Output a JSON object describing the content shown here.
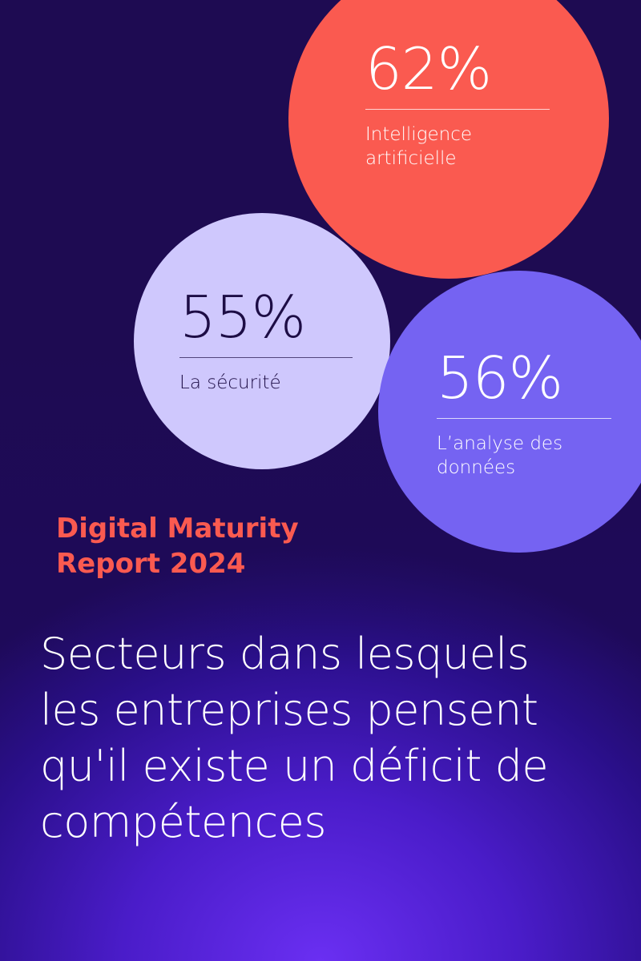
{
  "colors": {
    "background_top": "#1e0b52",
    "background_glow": "#6a2ff2",
    "coral": "#fa5a50",
    "lavender": "#cfc8fd",
    "violet": "#7563f2",
    "white": "#ffffff"
  },
  "stats": {
    "ai": {
      "value": "62%",
      "label_line1": "Intelligence",
      "label_line2": "artificielle"
    },
    "security": {
      "value": "55%",
      "label_line1": "La sécurité"
    },
    "data": {
      "value": "56%",
      "label_line1": "L’analyse des",
      "label_line2": "données"
    }
  },
  "report": {
    "line1": "Digital Maturity",
    "line2": "Report 2024"
  },
  "headline": {
    "line1": "Secteurs dans lesquels",
    "line2": "les entreprises pensent",
    "line3": "qu'il existe un déficit de",
    "line4": "compétences"
  }
}
